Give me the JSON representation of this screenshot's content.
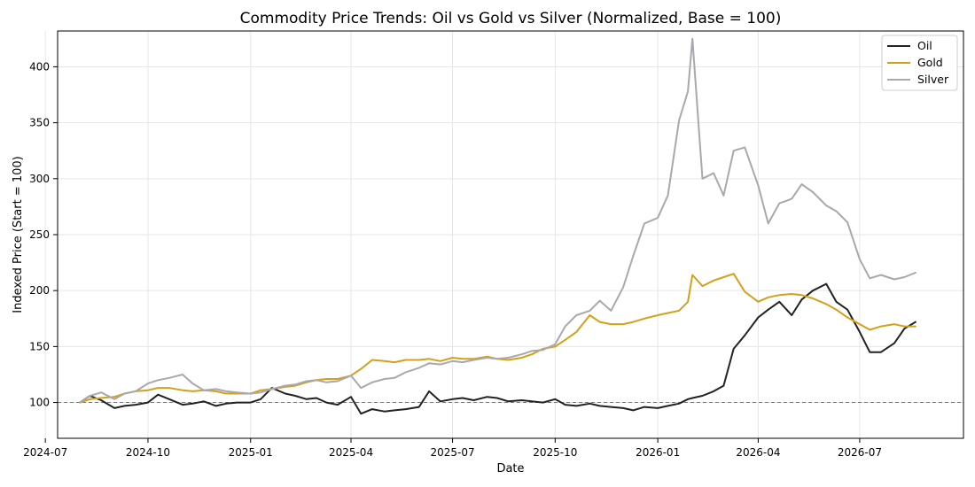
{
  "chart_data": {
    "type": "line",
    "title": "Commodity Price Trends: Oil vs Gold vs Silver (Normalized, Base = 100)",
    "xlabel": "Date",
    "ylabel": "Indexed Price (Start = 100)",
    "x_tick_labels": [
      "2024-07",
      "2024-10",
      "2025-01",
      "2025-04",
      "2025-07",
      "2025-10",
      "2026-01",
      "2026-04",
      "2026-07"
    ],
    "y_ticks": [
      100,
      150,
      200,
      250,
      300,
      350,
      400
    ],
    "xlim": [
      "2024-07-12",
      "2026-10-02"
    ],
    "ylim": [
      68,
      432
    ],
    "grid": true,
    "reference_line": 100,
    "legend_position": "top-right",
    "x": [
      "2024-08-01",
      "2024-08-10",
      "2024-08-20",
      "2024-09-01",
      "2024-09-10",
      "2024-09-20",
      "2024-10-01",
      "2024-10-10",
      "2024-10-20",
      "2024-11-01",
      "2024-11-10",
      "2024-11-20",
      "2024-12-01",
      "2024-12-10",
      "2024-12-20",
      "2025-01-01",
      "2025-01-10",
      "2025-01-20",
      "2025-02-01",
      "2025-02-10",
      "2025-02-20",
      "2025-03-01",
      "2025-03-10",
      "2025-03-20",
      "2025-04-01",
      "2025-04-10",
      "2025-04-20",
      "2025-05-01",
      "2025-05-10",
      "2025-05-20",
      "2025-06-01",
      "2025-06-10",
      "2025-06-20",
      "2025-07-01",
      "2025-07-10",
      "2025-07-20",
      "2025-08-01",
      "2025-08-10",
      "2025-08-20",
      "2025-09-01",
      "2025-09-10",
      "2025-09-20",
      "2025-10-01",
      "2025-10-10",
      "2025-10-20",
      "2025-11-01",
      "2025-11-10",
      "2025-11-20",
      "2025-12-01",
      "2025-12-10",
      "2025-12-20",
      "2026-01-01",
      "2026-01-10",
      "2026-01-20",
      "2026-01-28",
      "2026-02-01",
      "2026-02-10",
      "2026-02-20",
      "2026-03-01",
      "2026-03-10",
      "2026-03-20",
      "2026-04-01",
      "2026-04-10",
      "2026-04-20",
      "2026-05-01",
      "2026-05-10",
      "2026-05-20",
      "2026-06-01",
      "2026-06-10",
      "2026-06-20",
      "2026-07-01",
      "2026-07-10",
      "2026-07-20",
      "2026-08-01",
      "2026-08-10",
      "2026-08-20"
    ],
    "series": [
      {
        "name": "Oil",
        "color": "#222222",
        "values": [
          100,
          106,
          102,
          95,
          97,
          98,
          100,
          107,
          103,
          98,
          99,
          101,
          97,
          99,
          100,
          100,
          103,
          113,
          108,
          106,
          103,
          104,
          100,
          98,
          105,
          90,
          94,
          92,
          93,
          94,
          96,
          110,
          101,
          103,
          104,
          102,
          105,
          104,
          101,
          102,
          101,
          100,
          103,
          98,
          97,
          99,
          97,
          96,
          95,
          93,
          96,
          95,
          97,
          99,
          103,
          104,
          106,
          110,
          115,
          148,
          160,
          176,
          183,
          190,
          178,
          192,
          200,
          206,
          190,
          183,
          163,
          145,
          145,
          153,
          166,
          172
        ]
      },
      {
        "name": "Gold",
        "color": "#D4A017",
        "values": [
          100,
          103,
          104,
          105,
          108,
          110,
          111,
          113,
          113,
          111,
          110,
          111,
          110,
          108,
          108,
          108,
          111,
          112,
          114,
          115,
          118,
          120,
          121,
          121,
          124,
          130,
          138,
          137,
          136,
          138,
          138,
          139,
          137,
          140,
          139,
          139,
          141,
          139,
          138,
          140,
          143,
          148,
          150,
          156,
          163,
          178,
          172,
          170,
          170,
          172,
          175,
          178,
          180,
          182,
          190,
          214,
          204,
          209,
          212,
          215,
          199,
          190,
          194,
          196,
          197,
          196,
          193,
          188,
          183,
          176,
          170,
          165,
          168,
          170,
          168,
          168
        ]
      },
      {
        "name": "Silver",
        "color": "#a8a8ad",
        "values": [
          100,
          106,
          109,
          103,
          108,
          110,
          117,
          120,
          122,
          125,
          117,
          111,
          112,
          110,
          109,
          108,
          109,
          112,
          115,
          116,
          119,
          120,
          118,
          119,
          124,
          113,
          118,
          121,
          122,
          127,
          131,
          135,
          134,
          137,
          136,
          138,
          140,
          139,
          140,
          143,
          146,
          147,
          152,
          168,
          178,
          182,
          191,
          182,
          203,
          231,
          260,
          265,
          285,
          352,
          378,
          425,
          300,
          305,
          285,
          325,
          328,
          294,
          260,
          278,
          282,
          295,
          288,
          276,
          271,
          261,
          228,
          211,
          214,
          210,
          212,
          216
        ]
      }
    ]
  }
}
